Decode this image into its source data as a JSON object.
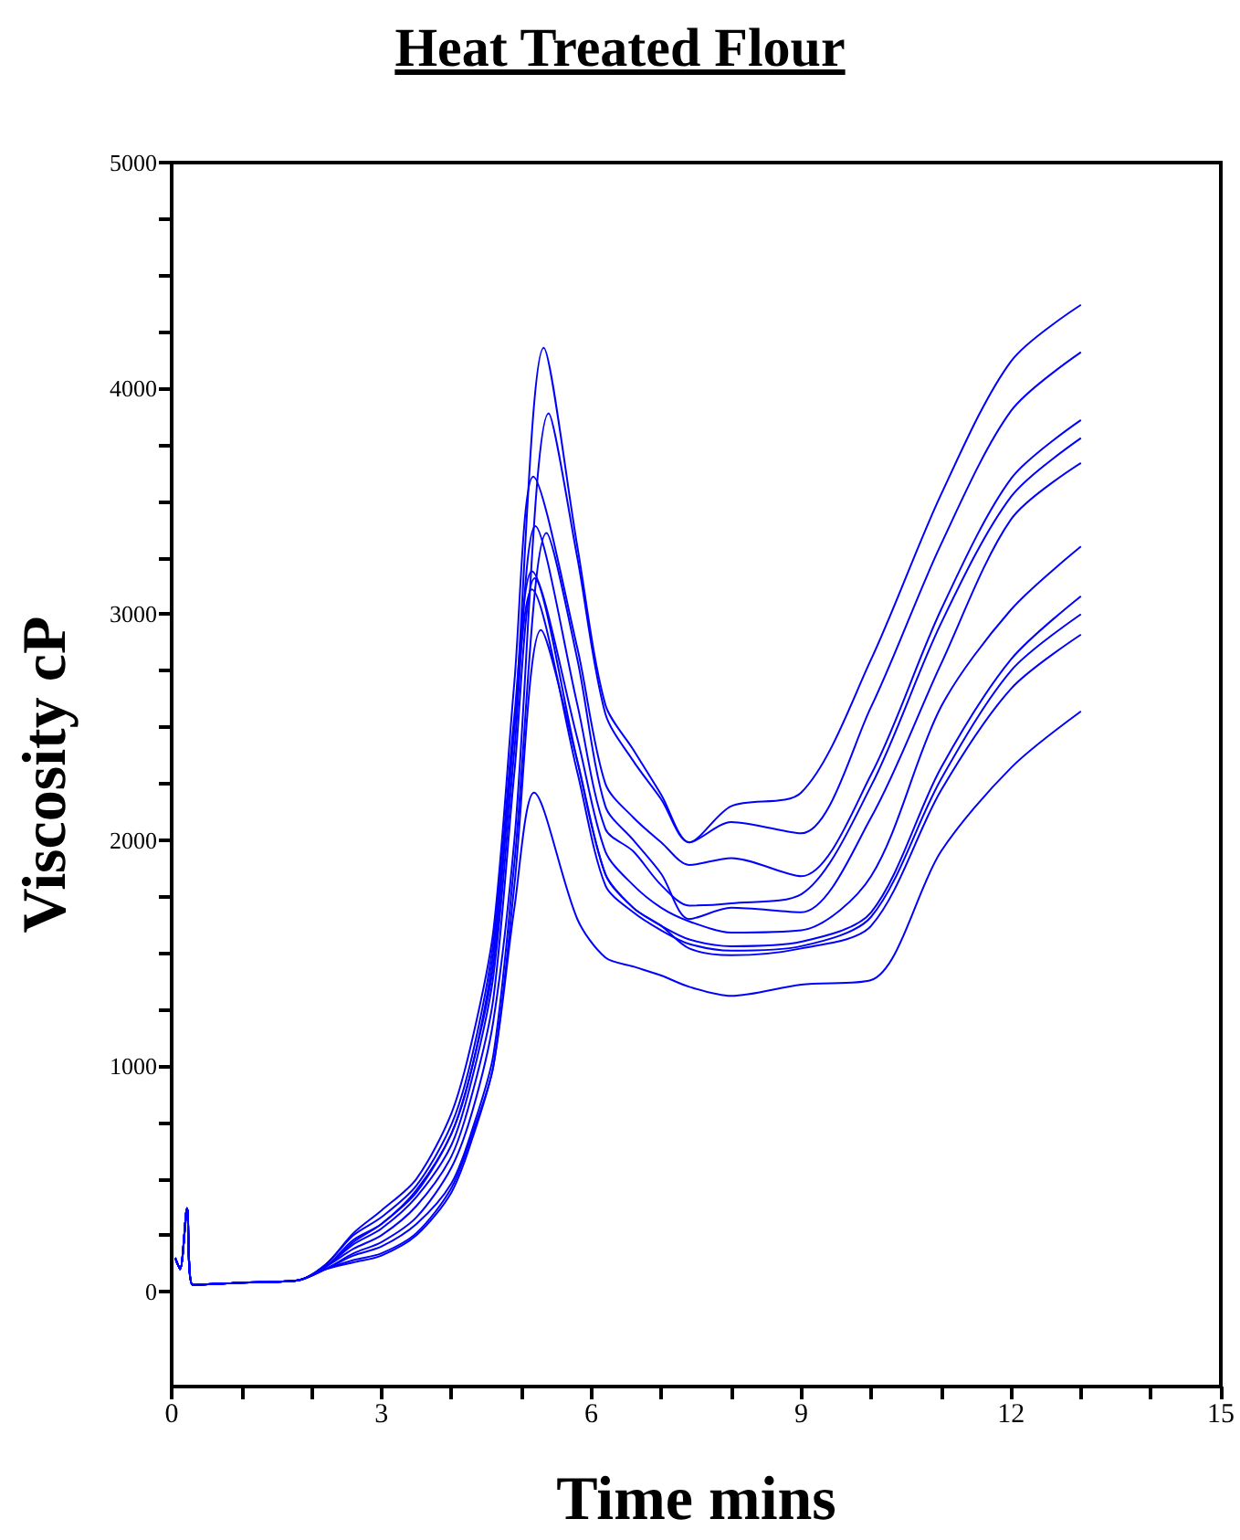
{
  "chart_data": {
    "type": "line",
    "title": "Heat Treated Flour",
    "xlabel": "Time mins",
    "ylabel": "Viscosity cP",
    "xlim": [
      0,
      15
    ],
    "xticks": [
      0,
      {
        "value": 1,
        "label": null
      },
      {
        "value": 2,
        "label": null
      },
      3,
      {
        "value": 4,
        "label": null
      },
      {
        "value": 5,
        "label": null
      },
      6,
      {
        "value": 7,
        "label": null
      },
      {
        "value": 8,
        "label": null
      },
      9,
      {
        "value": 10,
        "label": null
      },
      {
        "value": 11,
        "label": null
      },
      12,
      {
        "value": 13,
        "label": null
      },
      {
        "value": 14,
        "label": null
      },
      15
    ],
    "ylim": [
      -420,
      5000
    ],
    "yticks": [
      0,
      {
        "value": 250,
        "label": null
      },
      {
        "value": 500,
        "label": null
      },
      {
        "value": 750,
        "label": null
      },
      1000,
      {
        "value": 1250,
        "label": null
      },
      {
        "value": 1500,
        "label": null
      },
      {
        "value": 1750,
        "label": null
      },
      2000,
      {
        "value": 2250,
        "label": null
      },
      {
        "value": 2500,
        "label": null
      },
      {
        "value": 2750,
        "label": null
      },
      3000,
      {
        "value": 3250,
        "label": null
      },
      {
        "value": 3500,
        "label": null
      },
      {
        "value": 3750,
        "label": null
      },
      4000,
      {
        "value": 4250,
        "label": null
      },
      {
        "value": 4500,
        "label": null
      },
      {
        "value": 4750,
        "label": null
      },
      5000
    ],
    "marker": "none",
    "line_style": "solid",
    "series": [
      {
        "color": "#0000ff",
        "x": [
          0.05,
          0.12,
          0.22,
          0.3,
          1,
          1.8,
          2.2,
          2.6,
          3,
          3.5,
          4,
          4.3,
          4.6,
          4.9,
          5.32,
          5.8,
          6.2,
          6.6,
          7,
          7.4,
          8,
          9,
          10,
          11,
          12,
          13
        ],
        "values": [
          150,
          100,
          370,
          30,
          40,
          50,
          110,
          230,
          300,
          450,
          700,
          1000,
          1500,
          2500,
          4180,
          3300,
          2600,
          2400,
          2200,
          1990,
          2150,
          2210,
          2800,
          3530,
          4120,
          4370
        ]
      },
      {
        "color": "#0000ff",
        "x": [
          0.05,
          0.12,
          0.22,
          0.3,
          1,
          1.8,
          2.2,
          2.6,
          3,
          3.5,
          4,
          4.3,
          4.6,
          4.9,
          5.39,
          5.8,
          6.2,
          6.6,
          7,
          7.4,
          8,
          9,
          10,
          11,
          12,
          13
        ],
        "values": [
          150,
          100,
          370,
          30,
          40,
          50,
          100,
          170,
          220,
          330,
          550,
          800,
          1200,
          2000,
          3890,
          3250,
          2560,
          2350,
          2180,
          1990,
          2080,
          2030,
          2590,
          3310,
          3900,
          4160
        ]
      },
      {
        "color": "#0000ff",
        "x": [
          0.05,
          0.12,
          0.22,
          0.3,
          1,
          1.8,
          2.2,
          2.6,
          3,
          3.5,
          4,
          4.3,
          4.6,
          4.9,
          5.17,
          5.8,
          6.2,
          6.6,
          7,
          7.4,
          8,
          9,
          10,
          11,
          12,
          13
        ],
        "values": [
          150,
          100,
          370,
          30,
          40,
          50,
          120,
          260,
          360,
          500,
          790,
          1120,
          1600,
          2700,
          3610,
          2850,
          2250,
          2100,
          1990,
          1890,
          1920,
          1840,
          2290,
          3020,
          3600,
          3860
        ]
      },
      {
        "color": "#0000ff",
        "x": [
          0.05,
          0.12,
          0.22,
          0.3,
          1,
          1.8,
          2.2,
          2.6,
          3,
          3.5,
          4,
          4.3,
          4.6,
          4.9,
          5.2,
          5.8,
          6.2,
          6.6,
          7,
          7.4,
          8,
          9,
          10,
          11,
          12,
          13
        ],
        "values": [
          150,
          100,
          370,
          30,
          40,
          50,
          110,
          210,
          280,
          420,
          650,
          950,
          1400,
          2400,
          3390,
          2600,
          2050,
          1950,
          1800,
          1710,
          1720,
          1760,
          2240,
          2960,
          3520,
          3780
        ]
      },
      {
        "color": "#0000ff",
        "x": [
          0.05,
          0.12,
          0.22,
          0.3,
          1,
          1.8,
          2.2,
          2.6,
          3,
          3.5,
          4,
          4.3,
          4.6,
          4.9,
          5.36,
          5.8,
          6.2,
          6.6,
          7,
          7.4,
          8,
          9,
          10,
          11,
          12,
          13
        ],
        "values": [
          150,
          100,
          370,
          30,
          40,
          50,
          100,
          160,
          200,
          300,
          480,
          720,
          1050,
          1900,
          3360,
          2800,
          2150,
          2000,
          1850,
          1650,
          1700,
          1680,
          2100,
          2780,
          3420,
          3670
        ]
      },
      {
        "color": "#0000ff",
        "x": [
          0.05,
          0.12,
          0.22,
          0.3,
          1,
          1.8,
          2.2,
          2.6,
          3,
          3.5,
          4,
          4.3,
          4.6,
          4.9,
          5.15,
          5.8,
          6.2,
          6.6,
          7,
          7.4,
          8,
          9,
          10,
          11,
          12,
          13
        ],
        "values": [
          150,
          100,
          370,
          30,
          40,
          50,
          120,
          250,
          330,
          470,
          740,
          1050,
          1550,
          2550,
          3190,
          2450,
          1950,
          1800,
          1700,
          1640,
          1590,
          1600,
          1840,
          2590,
          3020,
          3300
        ]
      },
      {
        "color": "#0000ff",
        "x": [
          0.05,
          0.12,
          0.22,
          0.3,
          1,
          1.8,
          2.2,
          2.6,
          3,
          3.5,
          4,
          4.3,
          4.6,
          4.9,
          5.19,
          5.8,
          6.2,
          6.6,
          7,
          7.4,
          8,
          9,
          10,
          11,
          12,
          13
        ],
        "values": [
          150,
          100,
          370,
          30,
          40,
          50,
          110,
          190,
          250,
          380,
          600,
          880,
          1300,
          2300,
          3160,
          2350,
          1850,
          1700,
          1620,
          1560,
          1530,
          1550,
          1680,
          2320,
          2800,
          3080
        ]
      },
      {
        "color": "#0000ff",
        "x": [
          0.05,
          0.12,
          0.22,
          0.3,
          1,
          1.8,
          2.2,
          2.6,
          3,
          3.5,
          4,
          4.3,
          4.6,
          4.9,
          5.15,
          5.8,
          6.2,
          6.6,
          7,
          7.4,
          8,
          9,
          10,
          11,
          12,
          13
        ],
        "values": [
          150,
          100,
          370,
          30,
          40,
          50,
          110,
          220,
          300,
          440,
          700,
          1000,
          1450,
          2500,
          3110,
          2300,
          1800,
          1680,
          1600,
          1540,
          1510,
          1530,
          1660,
          2270,
          2750,
          3000
        ]
      },
      {
        "color": "#0000ff",
        "x": [
          0.05,
          0.12,
          0.22,
          0.3,
          1,
          1.8,
          2.2,
          2.6,
          3,
          3.5,
          4,
          4.3,
          4.6,
          4.9,
          5.28,
          5.8,
          6.2,
          6.6,
          7,
          7.4,
          8,
          9,
          10,
          11,
          12,
          13
        ],
        "values": [
          150,
          100,
          370,
          30,
          40,
          50,
          100,
          140,
          170,
          260,
          460,
          700,
          1000,
          1800,
          2930,
          2350,
          1850,
          1700,
          1620,
          1520,
          1490,
          1520,
          1620,
          2220,
          2670,
          2910
        ]
      },
      {
        "color": "#0000ff",
        "x": [
          0.05,
          0.12,
          0.22,
          0.3,
          1,
          1.8,
          2.2,
          2.6,
          3,
          3.5,
          4,
          4.3,
          4.6,
          4.9,
          5.18,
          5.8,
          6.2,
          6.6,
          7,
          7.4,
          8,
          9,
          10,
          11,
          12,
          13
        ],
        "values": [
          150,
          100,
          370,
          30,
          40,
          50,
          100,
          130,
          160,
          250,
          440,
          680,
          1000,
          1700,
          2210,
          1650,
          1480,
          1440,
          1400,
          1350,
          1310,
          1360,
          1380,
          1950,
          2320,
          2570
        ]
      }
    ]
  }
}
